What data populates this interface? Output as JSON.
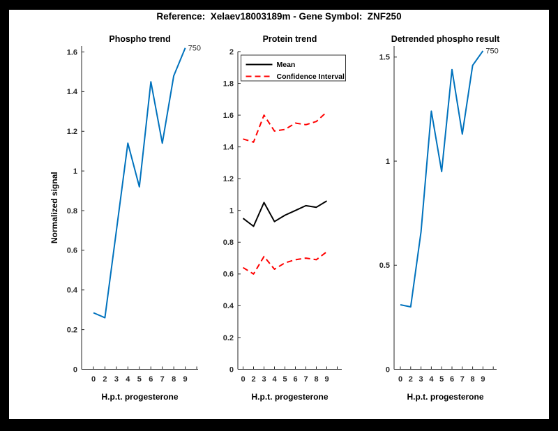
{
  "figure": {
    "title": "Reference:  Xelaev18003189m - Gene Symbol:  ZNF250",
    "frame_color": "#000000",
    "canvas_color": "#ffffff",
    "axis_color": "#262626",
    "accent_blue": "#0072BD",
    "accent_red": "#FF0000"
  },
  "chart_data": [
    {
      "type": "line",
      "title": "Phospho trend",
      "xlabel": "H.p.t. progesterone",
      "ylabel": "Normalized signal",
      "categories": [
        "0",
        "2",
        "3",
        "4",
        "5",
        "6",
        "7",
        "8",
        "9"
      ],
      "extra_unlabeled_tick": true,
      "grid": false,
      "legend": null,
      "ylim": [
        0,
        1.63
      ],
      "yticks": [
        0,
        0.2,
        0.4,
        0.6,
        0.8,
        1,
        1.2,
        1.4,
        1.6
      ],
      "series": [
        {
          "name": "phospho-signal",
          "color": "#0072BD",
          "style": "solid",
          "width": 2,
          "values": [
            0.285,
            0.26,
            0.7,
            1.14,
            0.92,
            1.45,
            1.14,
            1.48,
            1.62
          ]
        }
      ],
      "end_annotation": "750"
    },
    {
      "type": "line",
      "title": "Protein trend",
      "xlabel": "H.p.t. progesterone",
      "ylabel": "",
      "categories": [
        "0",
        "2",
        "3",
        "4",
        "5",
        "6",
        "7",
        "8",
        "9"
      ],
      "extra_unlabeled_tick": true,
      "grid": false,
      "legend": {
        "position": "northwest",
        "entries": [
          {
            "label": "Mean",
            "color": "#000000",
            "style": "solid"
          },
          {
            "label": "Confidence Interval",
            "color": "#FF0000",
            "style": "dashed"
          }
        ]
      },
      "ylim": [
        0,
        2
      ],
      "yticks": [
        0,
        0.2,
        0.4,
        0.6,
        0.8,
        1,
        1.2,
        1.4,
        1.6,
        1.8,
        2
      ],
      "series": [
        {
          "name": "mean",
          "color": "#000000",
          "style": "solid",
          "width": 2,
          "values": [
            0.95,
            0.9,
            1.05,
            0.93,
            0.97,
            1.0,
            1.03,
            1.02,
            1.06
          ]
        },
        {
          "name": "ci-upper",
          "color": "#FF0000",
          "style": "dashed",
          "width": 2,
          "values": [
            1.45,
            1.43,
            1.6,
            1.5,
            1.51,
            1.55,
            1.54,
            1.56,
            1.62
          ]
        },
        {
          "name": "ci-lower",
          "color": "#FF0000",
          "style": "dashed",
          "width": 2,
          "values": [
            0.64,
            0.6,
            0.71,
            0.63,
            0.67,
            0.69,
            0.7,
            0.69,
            0.74
          ]
        }
      ],
      "end_annotation": null
    },
    {
      "type": "line",
      "title": "Detrended phospho result",
      "xlabel": "H.p.t. progesterone",
      "ylabel": "",
      "categories": [
        "0",
        "2",
        "3",
        "4",
        "5",
        "6",
        "7",
        "8",
        "9"
      ],
      "extra_unlabeled_tick": true,
      "grid": false,
      "legend": null,
      "ylim": [
        0,
        1.553
      ],
      "yticks": [
        0,
        0.5,
        1,
        1.5
      ],
      "series": [
        {
          "name": "detrended-phospho",
          "color": "#0072BD",
          "style": "solid",
          "width": 2,
          "values": [
            0.31,
            0.3,
            0.66,
            1.24,
            0.95,
            1.44,
            1.13,
            1.46,
            1.53
          ]
        }
      ],
      "end_annotation": "750"
    }
  ]
}
